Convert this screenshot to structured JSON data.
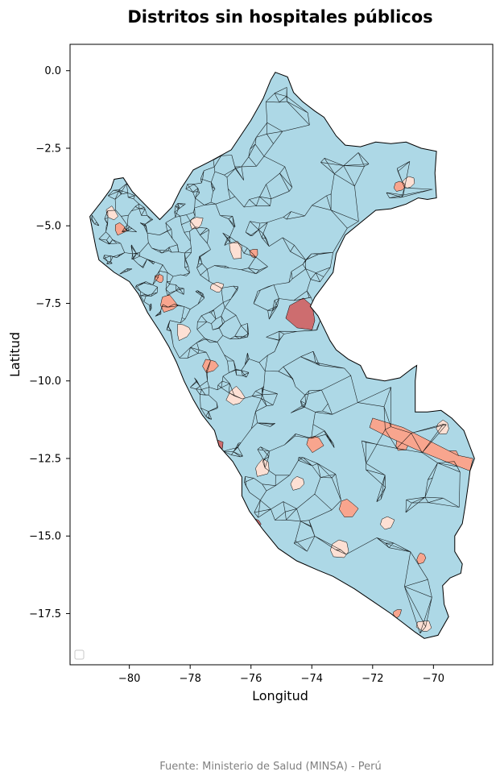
{
  "chart_data": {
    "type": "choropleth_map",
    "title": "Distritos sin hospitales públicos",
    "xlabel": "Longitud",
    "ylabel": "Latitud",
    "xlim": [
      -81.95,
      -68.05
    ],
    "ylim": [
      -19.15,
      0.85
    ],
    "xticks": [
      -80,
      -78,
      -76,
      -74,
      -72,
      -70
    ],
    "xtick_labels": [
      "−80",
      "−78",
      "−76",
      "−74",
      "−72",
      "−70"
    ],
    "yticks": [
      0.0,
      -2.5,
      -5.0,
      -7.5,
      -10.0,
      -12.5,
      -15.0,
      -17.5
    ],
    "ytick_labels": [
      "0.0",
      "−2.5",
      "−5.0",
      "−7.5",
      "−10.0",
      "−12.5",
      "−15.0",
      "−17.5"
    ],
    "legend": {
      "location": "lower-left",
      "entries": []
    },
    "colors": {
      "base": "#add8e6",
      "light": "#fde0d4",
      "medium": "#f8a58e",
      "dark": "#cd6d6f",
      "border": "#000000",
      "grid": false
    },
    "source": "Fuente: Ministerio de Salud (MINSA) - Perú",
    "highlighted_regions": [
      {
        "level": "dark",
        "lon": -74.3,
        "lat": -7.9
      },
      {
        "level": "medium",
        "lon": -71.0,
        "lat": -12.0
      },
      {
        "level": "medium",
        "lon": -69.4,
        "lat": -12.4
      },
      {
        "level": "light",
        "lon": -70.8,
        "lat": -3.6
      },
      {
        "level": "light",
        "lon": -69.7,
        "lat": -11.5
      },
      {
        "level": "medium",
        "lon": -71.1,
        "lat": -3.7
      },
      {
        "level": "medium",
        "lon": -77.3,
        "lat": -9.5
      },
      {
        "level": "medium",
        "lon": -75.9,
        "lat": -5.9
      },
      {
        "level": "light",
        "lon": -77.8,
        "lat": -4.9
      },
      {
        "level": "light",
        "lon": -76.5,
        "lat": -5.8
      },
      {
        "level": "medium",
        "lon": -80.3,
        "lat": -5.1
      },
      {
        "level": "light",
        "lon": -80.6,
        "lat": -4.6
      },
      {
        "level": "dark",
        "lon": -75.9,
        "lat": -14.6
      },
      {
        "level": "dark",
        "lon": -77.1,
        "lat": -12.1
      },
      {
        "level": "medium",
        "lon": -71.2,
        "lat": -17.5
      },
      {
        "level": "light",
        "lon": -70.3,
        "lat": -17.9
      },
      {
        "level": "medium",
        "lon": -70.4,
        "lat": -15.7
      },
      {
        "level": "light",
        "lon": -73.1,
        "lat": -15.4
      },
      {
        "level": "light",
        "lon": -75.0,
        "lat": -16.0
      },
      {
        "level": "medium",
        "lon": -77.6,
        "lat": -11.6
      },
      {
        "level": "light",
        "lon": -76.5,
        "lat": -10.5
      },
      {
        "level": "light",
        "lon": -78.2,
        "lat": -8.4
      },
      {
        "level": "medium",
        "lon": -78.7,
        "lat": -7.5
      },
      {
        "level": "light",
        "lon": -74.5,
        "lat": -13.3
      },
      {
        "level": "medium",
        "lon": -72.8,
        "lat": -14.1
      },
      {
        "level": "light",
        "lon": -75.6,
        "lat": -12.8
      },
      {
        "level": "light",
        "lon": -71.5,
        "lat": -14.6
      },
      {
        "level": "medium",
        "lon": -73.9,
        "lat": -12.0
      },
      {
        "level": "light",
        "lon": -77.1,
        "lat": -7.0
      },
      {
        "level": "medium",
        "lon": -79.0,
        "lat": -6.7
      }
    ]
  }
}
